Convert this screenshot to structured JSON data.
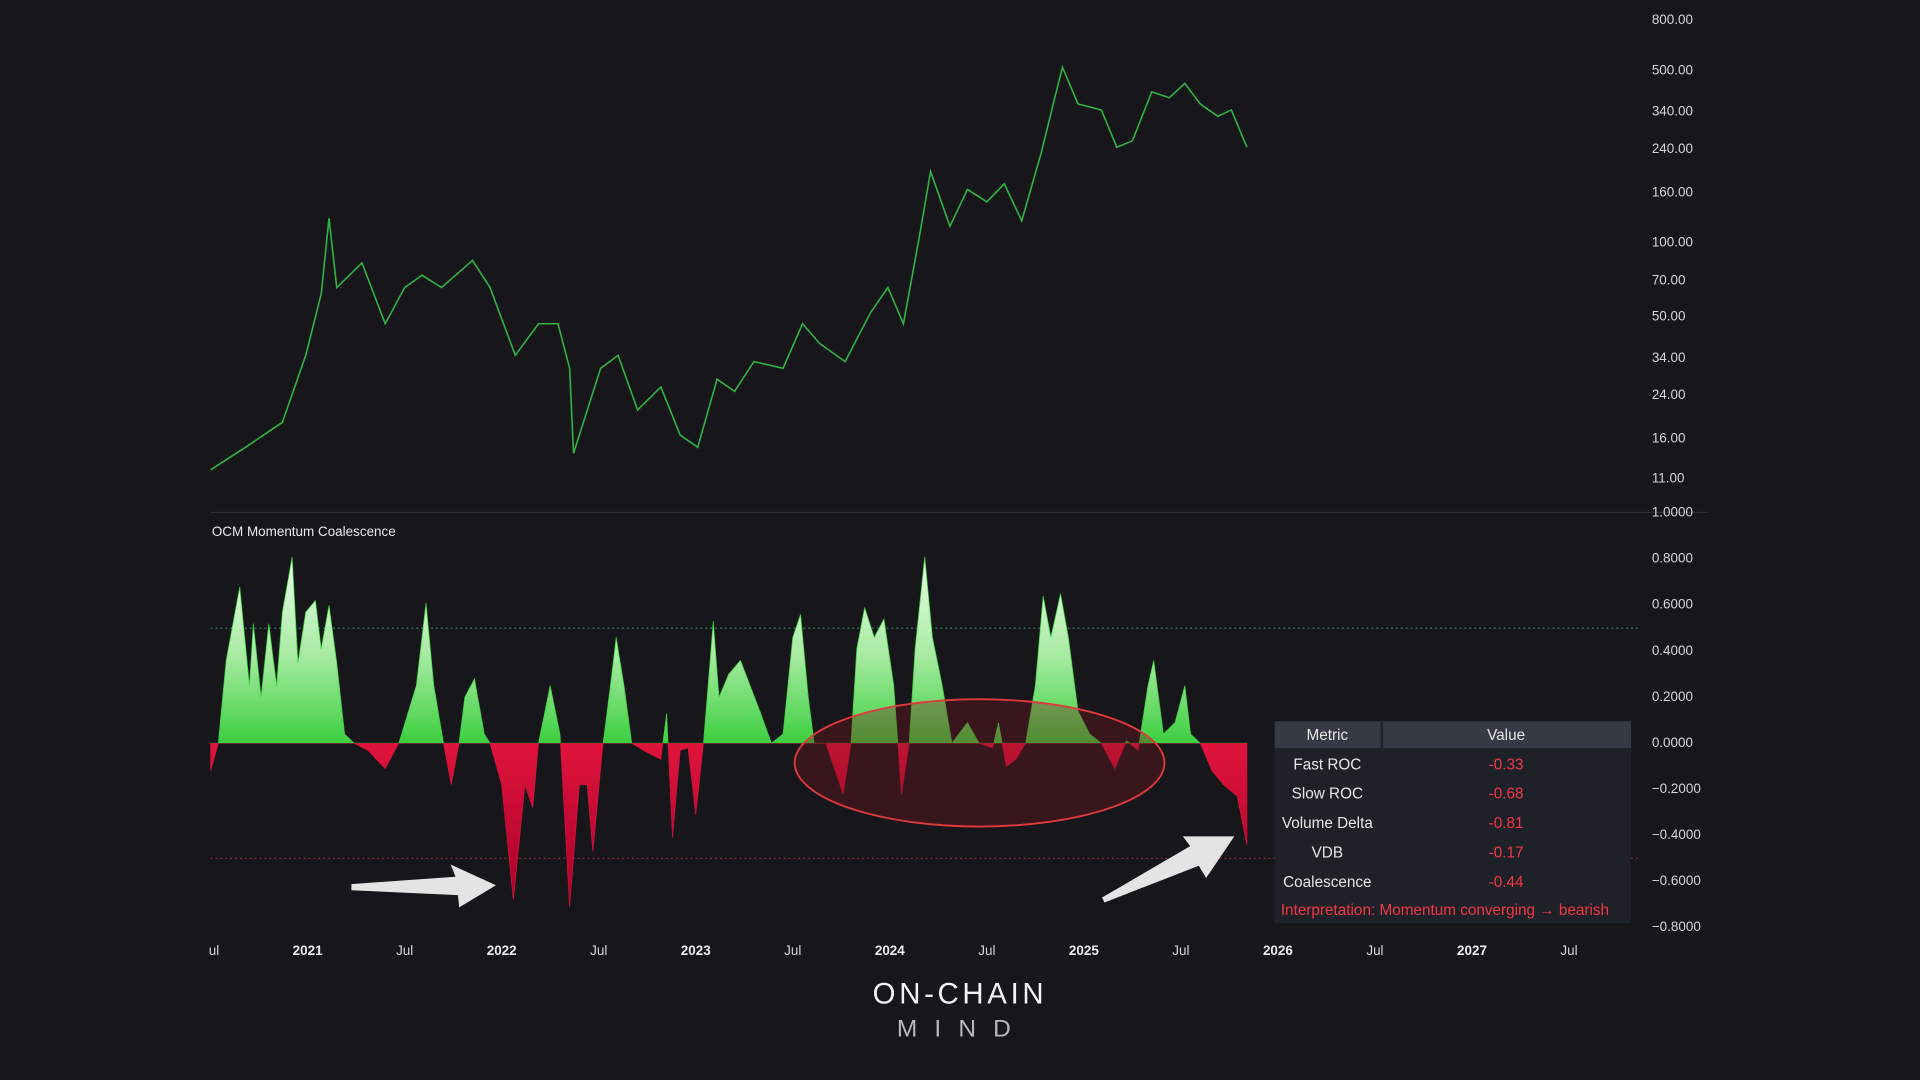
{
  "chart_data": [
    {
      "type": "line",
      "log_scale": true,
      "x": [
        2020.5,
        2020.68,
        2020.87,
        2020.99,
        2021.07,
        2021.11,
        2021.15,
        2021.28,
        2021.4,
        2021.5,
        2021.59,
        2021.69,
        2021.85,
        2021.94,
        2022.07,
        2022.19,
        2022.29,
        2022.35,
        2022.37,
        2022.51,
        2022.6,
        2022.7,
        2022.82,
        2022.92,
        2023.01,
        2023.11,
        2023.2,
        2023.3,
        2023.45,
        2023.55,
        2023.64,
        2023.77,
        2023.9,
        2023.99,
        2024.07,
        2024.15,
        2024.21,
        2024.31,
        2024.4,
        2024.5,
        2024.59,
        2024.68,
        2024.78,
        2024.85,
        2024.89,
        2024.97,
        2025.09,
        2025.17,
        2025.25,
        2025.35,
        2025.44,
        2025.52,
        2025.6,
        2025.69,
        2025.76,
        2025.84
      ],
      "series": [
        {
          "color": "#2fb344",
          "values": [
            12,
            14.8,
            18.7,
            35,
            62,
            126,
            66,
            83,
            47,
            66,
            74,
            66,
            85,
            66,
            35,
            47,
            47,
            31,
            14,
            31,
            35,
            21,
            26,
            16.6,
            14.8,
            28,
            25,
            33,
            31,
            47,
            39,
            33,
            52,
            66,
            47,
            104,
            195,
            117,
            165,
            147,
            174,
            123,
            232,
            389,
            517,
            367,
            347,
            245,
            260,
            411,
            389,
            445,
            367,
            327,
            347,
            245
          ]
        }
      ],
      "xlim": [
        2020.5,
        2027.87
      ],
      "ylim": [
        8.1,
        970
      ],
      "yticks": [
        {
          "value": 11,
          "label": "11.00"
        },
        {
          "value": 16,
          "label": "16.00"
        },
        {
          "value": 24,
          "label": "24.00"
        },
        {
          "value": 34,
          "label": "34.00"
        },
        {
          "value": 50,
          "label": "50.00"
        },
        {
          "value": 70,
          "label": "70.00"
        },
        {
          "value": 100,
          "label": "100.00"
        },
        {
          "value": 160,
          "label": "160.00"
        },
        {
          "value": 240,
          "label": "240.00"
        },
        {
          "value": 340,
          "label": "340.00"
        },
        {
          "value": 500,
          "label": "500.00"
        },
        {
          "value": 800,
          "label": "800.00"
        }
      ]
    },
    {
      "type": "area",
      "title": "OCM Momentum Coalescence",
      "x": [
        2020.5,
        2020.54,
        2020.58,
        2020.65,
        2020.7,
        2020.72,
        2020.76,
        2020.8,
        2020.84,
        2020.87,
        2020.92,
        2020.95,
        2020.99,
        2021.04,
        2021.07,
        2021.11,
        2021.15,
        2021.19,
        2021.24,
        2021.31,
        2021.4,
        2021.47,
        2021.56,
        2021.61,
        2021.65,
        2021.7,
        2021.74,
        2021.78,
        2021.81,
        2021.86,
        2021.91,
        2021.94,
        2022.0,
        2022.06,
        2022.12,
        2022.16,
        2022.19,
        2022.25,
        2022.3,
        2022.35,
        2022.4,
        2022.44,
        2022.47,
        2022.52,
        2022.56,
        2022.59,
        2022.63,
        2022.67,
        2022.73,
        2022.82,
        2022.85,
        2022.88,
        2022.92,
        2022.96,
        2023.0,
        2023.04,
        2023.09,
        2023.12,
        2023.17,
        2023.23,
        2023.28,
        2023.33,
        2023.39,
        2023.45,
        2023.5,
        2023.54,
        2023.58,
        2023.61,
        2023.67,
        2023.76,
        2023.8,
        2023.83,
        2023.87,
        2023.92,
        2023.97,
        2024.02,
        2024.06,
        2024.1,
        2024.13,
        2024.18,
        2024.22,
        2024.27,
        2024.32,
        2024.4,
        2024.46,
        2024.53,
        2024.56,
        2024.6,
        2024.65,
        2024.7,
        2024.75,
        2024.79,
        2024.83,
        2024.88,
        2024.92,
        2024.97,
        2025.03,
        2025.09,
        2025.16,
        2025.22,
        2025.28,
        2025.33,
        2025.36,
        2025.41,
        2025.47,
        2025.52,
        2025.55,
        2025.6,
        2025.66,
        2025.72,
        2025.79,
        2025.84
      ],
      "series": [
        {
          "color_positive": "#3ccf3f",
          "color_negative": "#d0113a",
          "values": [
            -0.12,
            0,
            0.36,
            0.68,
            0.25,
            0.52,
            0.2,
            0.52,
            0.25,
            0.57,
            0.81,
            0.35,
            0.57,
            0.62,
            0.41,
            0.6,
            0.35,
            0.04,
            0,
            -0.03,
            -0.11,
            0,
            0.25,
            0.61,
            0.25,
            0,
            -0.18,
            0,
            0.2,
            0.28,
            0.04,
            0,
            -0.18,
            -0.68,
            -0.18,
            -0.28,
            0,
            0.25,
            0.04,
            -0.71,
            -0.18,
            -0.18,
            -0.47,
            -0.02,
            0.25,
            0.46,
            0.25,
            0,
            -0.03,
            -0.07,
            0.13,
            -0.41,
            -0.03,
            -0.02,
            -0.31,
            0,
            0.53,
            0.2,
            0.3,
            0.36,
            0.25,
            0.14,
            0,
            0.04,
            0.46,
            0.56,
            0.2,
            0,
            0,
            -0.22,
            0,
            0.41,
            0.59,
            0.46,
            0.54,
            0.25,
            -0.22,
            0,
            0.41,
            0.81,
            0.46,
            0.25,
            0,
            0.09,
            0,
            -0.02,
            0.09,
            -0.1,
            -0.07,
            0,
            0.25,
            0.64,
            0.46,
            0.65,
            0.46,
            0.14,
            0.04,
            0,
            -0.11,
            0.01,
            -0.03,
            0.25,
            0.36,
            0.04,
            0.09,
            0.25,
            0.04,
            0,
            -0.12,
            -0.18,
            -0.23,
            -0.44
          ]
        }
      ],
      "levels": [
        {
          "value": 0.5,
          "color": "#2a8a6a"
        },
        {
          "value": -0.5,
          "color": "#8a2a35"
        }
      ],
      "xlim": [
        2020.5,
        2027.87
      ],
      "ylim": [
        -0.87,
        1.0
      ],
      "yticks": [
        {
          "value": 1,
          "label": "1.0000"
        },
        {
          "value": 0.8,
          "label": "0.8000"
        },
        {
          "value": 0.6,
          "label": "0.6000"
        },
        {
          "value": 0.4,
          "label": "0.4000"
        },
        {
          "value": 0.2,
          "label": "0.2000"
        },
        {
          "value": 0,
          "label": "0.0000"
        },
        {
          "value": -0.2,
          "label": "−0.2000"
        },
        {
          "value": -0.4,
          "label": "−0.4000"
        },
        {
          "value": -0.6,
          "label": "−0.6000"
        },
        {
          "value": -0.8,
          "label": "−0.8000"
        }
      ],
      "xticks": [
        {
          "value": 2020.5,
          "label": "Jul"
        },
        2021,
        {
          "value": 2021.5,
          "label": "Jul"
        },
        2022,
        {
          "value": 2022.5,
          "label": "Jul"
        },
        2023,
        {
          "value": 2023.5,
          "label": "Jul"
        },
        2024,
        {
          "value": 2024.5,
          "label": "Jul"
        },
        2025,
        {
          "value": 2025.5,
          "label": "Jul"
        },
        2026,
        {
          "value": 2026.5,
          "label": "Jul"
        },
        2027,
        {
          "value": 2027.5,
          "label": "Jul"
        }
      ]
    }
  ],
  "table": {
    "header": [
      "Metric",
      "Value"
    ],
    "rows": [
      [
        "Fast ROC",
        "-0.33"
      ],
      [
        "Slow ROC",
        "-0.68"
      ],
      [
        "Volume Delta",
        "-0.81"
      ],
      [
        "VDB",
        "-0.17"
      ],
      [
        "Coalescence",
        "-0.44"
      ]
    ],
    "note": "Interpretation: Momentum converging → bearish"
  },
  "logo": {
    "line1": "ON-CHAIN",
    "line2": "MIND"
  }
}
